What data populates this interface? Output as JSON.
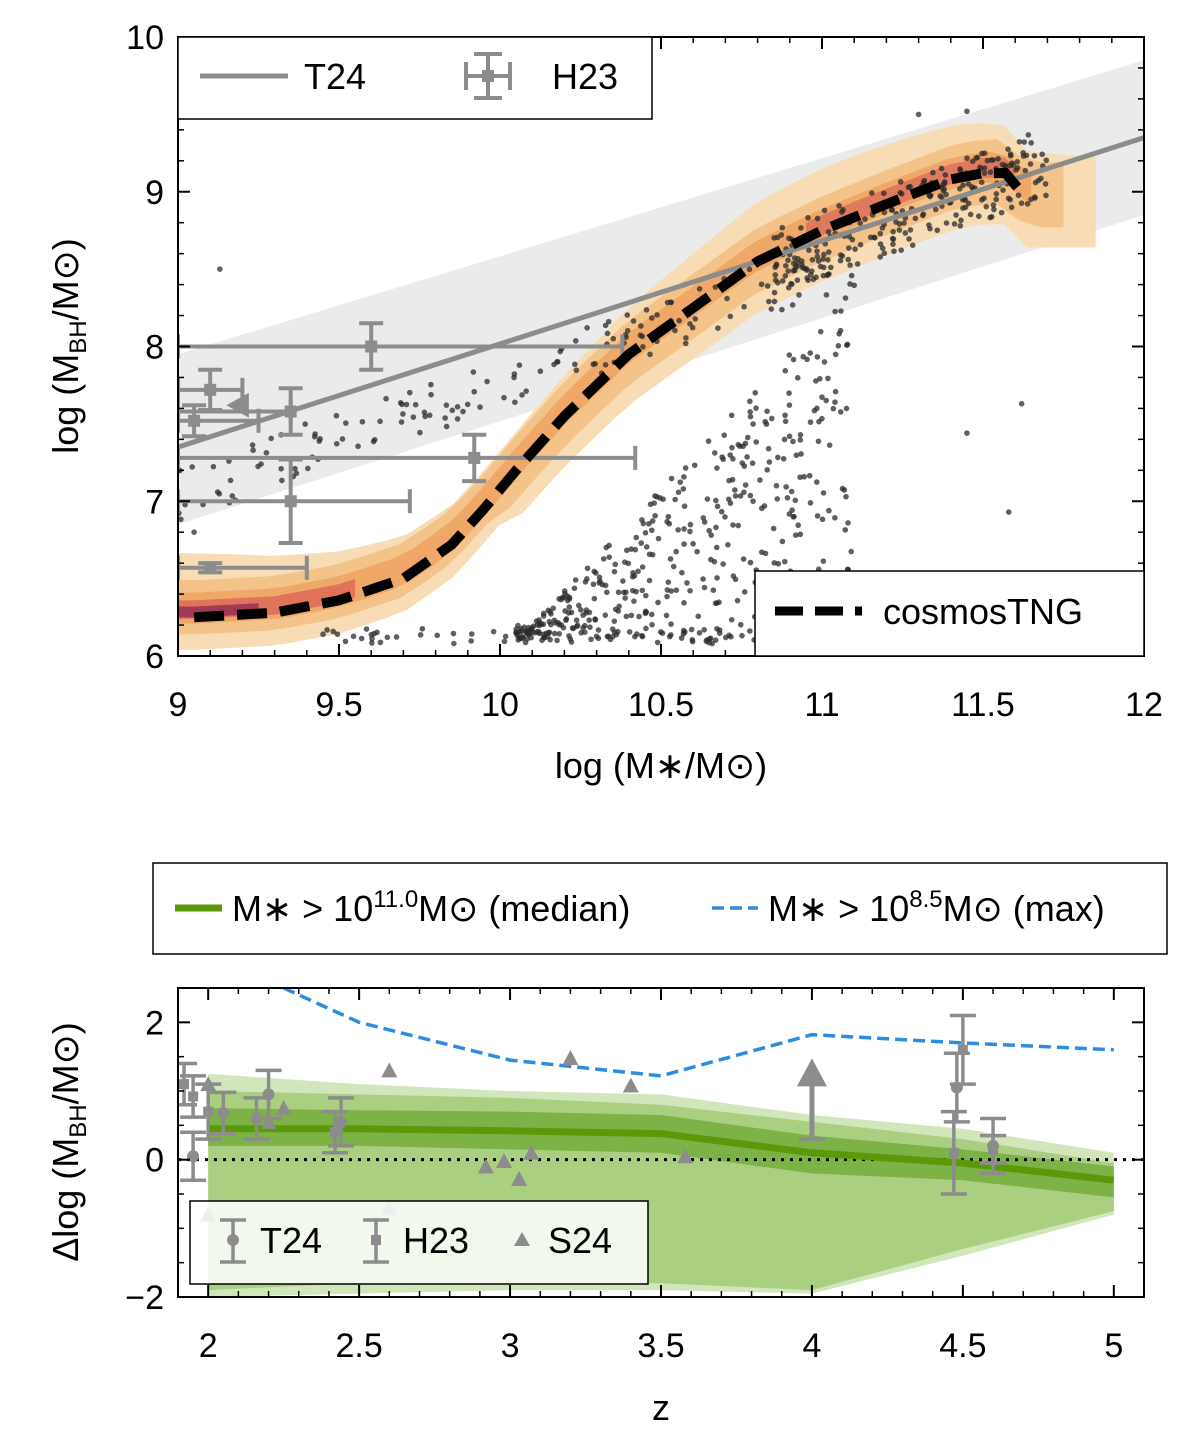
{
  "chart_data": [
    {
      "type": "scatter",
      "title": "",
      "xlabel": "log (M∗/M⊙)",
      "ylabel": "log (M_BH/M⊙)",
      "xlim": [
        9,
        12
      ],
      "ylim": [
        6,
        10
      ],
      "xticks": [
        "9",
        "9.5",
        "10",
        "10.5",
        "11",
        "11.5",
        "12"
      ],
      "yticks": [
        "6",
        "7",
        "8",
        "9",
        "10"
      ],
      "legend_top": [
        "T24",
        "H23"
      ],
      "legend_bottom": [
        "cosmosTNG"
      ],
      "series": [
        {
          "name": "T24",
          "kind": "relation",
          "x": [
            9,
            12
          ],
          "y": [
            7.35,
            9.35
          ],
          "band_y_lower": [
            6.85,
            8.85
          ],
          "band_y_upper": [
            7.95,
            9.85
          ]
        },
        {
          "name": "cosmosTNG",
          "kind": "median",
          "x": [
            9.05,
            9.3,
            9.5,
            9.7,
            9.85,
            9.95,
            10.05,
            10.2,
            10.4,
            10.6,
            10.8,
            11.0,
            11.2,
            11.4,
            11.5,
            11.57,
            11.63
          ],
          "y": [
            6.25,
            6.28,
            6.36,
            6.5,
            6.72,
            6.95,
            7.2,
            7.55,
            7.95,
            8.25,
            8.55,
            8.75,
            8.92,
            9.08,
            9.12,
            9.12,
            8.97
          ]
        },
        {
          "name": "H23",
          "kind": "errorbars",
          "points": [
            {
              "x": 9.6,
              "y": 8.0,
              "xerr": [
                0.6,
                0.78
              ],
              "yerr": [
                0.15,
                0.15
              ]
            },
            {
              "x": 9.92,
              "y": 7.28,
              "xerr": [
                0.92,
                0.5
              ],
              "yerr": [
                0.15,
                0.15
              ]
            },
            {
              "x": 9.35,
              "y": 7.0,
              "xerr": [
                0.35,
                0.37
              ],
              "yerr": [
                0.27,
                0.27
              ]
            },
            {
              "x": 9.35,
              "y": 7.58,
              "xerr": [
                0.35,
                0.0
              ],
              "yerr": [
                0.15,
                0.15
              ]
            },
            {
              "x": 9.1,
              "y": 7.72,
              "xerr": [
                0.1,
                0.1
              ],
              "yerr": [
                0.13,
                0.13
              ]
            },
            {
              "x": 9.05,
              "y": 7.52,
              "xerr": [
                0.05,
                0.2
              ],
              "yerr": [
                0.1,
                0.1
              ]
            },
            {
              "x": 9.1,
              "y": 6.57,
              "xerr": [
                0.1,
                0.3
              ],
              "yerr": [
                0.03,
                0.03
              ]
            }
          ]
        }
      ]
    },
    {
      "type": "line",
      "title": "",
      "xlabel": "z",
      "ylabel": "Δlog (M_BH/M⊙)",
      "xlim": [
        1.9,
        5.1
      ],
      "ylim": [
        -2,
        2.5
      ],
      "xticks": [
        "2",
        "2.5",
        "3",
        "3.5",
        "4",
        "4.5",
        "5"
      ],
      "yticks": [
        "−2",
        "0",
        "2"
      ],
      "legend_top": [
        "M∗ > 10^11.0 M⊙ (median)",
        "M∗ > 10^8.5 M⊙ (max)"
      ],
      "legend_bottom": [
        "T24",
        "H23",
        "S24"
      ],
      "x": [
        2,
        2.5,
        3,
        3.5,
        4,
        4.5,
        5
      ],
      "series": [
        {
          "name": "M∗ > 10^11.0 M⊙ (median)",
          "values": [
            0.45,
            0.45,
            0.42,
            0.38,
            0.1,
            -0.05,
            -0.3
          ]
        },
        {
          "name": "M∗ > 10^8.5 M⊙ (max)",
          "x": [
            2.25,
            2.5,
            3.0,
            3.5,
            4.0,
            4.5,
            5.0
          ],
          "values": [
            2.5,
            2.0,
            1.45,
            1.22,
            1.82,
            1.7,
            1.6
          ]
        },
        {
          "name": "inner band",
          "lower": [
            0.2,
            0.2,
            0.15,
            0.1,
            -0.2,
            -0.3,
            -0.55
          ],
          "upper": [
            0.75,
            0.72,
            0.7,
            0.65,
            0.35,
            0.15,
            -0.1
          ]
        },
        {
          "name": "middle band",
          "lower": [
            -1.9,
            -1.8,
            -1.8,
            -1.8,
            -1.9,
            -1.3,
            -0.75
          ],
          "upper": [
            1.0,
            0.95,
            0.9,
            0.8,
            0.55,
            0.3,
            -0.05
          ]
        },
        {
          "name": "outer band",
          "lower": [
            -2,
            -1.95,
            -1.9,
            -1.9,
            -1.95,
            -1.4,
            -0.8
          ],
          "upper": [
            1.25,
            1.1,
            1.0,
            0.95,
            0.65,
            0.45,
            0.1
          ]
        },
        {
          "name": "T24",
          "kind": "points",
          "points": [
            {
              "x": 1.95,
              "y": 0.05,
              "yerr": 0.35
            },
            {
              "x": 2.05,
              "y": 0.68,
              "yerr": 0.3
            },
            {
              "x": 2.2,
              "y": 0.95,
              "yerr": 0.35
            },
            {
              "x": 2.44,
              "y": 0.55,
              "yerr": 0.35
            },
            {
              "x": 4.48,
              "y": 1.05,
              "yerr": 0.5
            },
            {
              "x": 4.6,
              "y": 0.2,
              "yerr": 0.4
            }
          ]
        },
        {
          "name": "H23",
          "kind": "points",
          "points": [
            {
              "x": 1.92,
              "y": 1.1,
              "yerr": 0.3
            },
            {
              "x": 1.95,
              "y": 0.92,
              "yerr": 0.3
            },
            {
              "x": 2.0,
              "y": 0.7,
              "yerr": 0.4
            },
            {
              "x": 2.16,
              "y": 0.6,
              "yerr": 0.3
            },
            {
              "x": 2.42,
              "y": 0.4,
              "yerr": 0.3
            },
            {
              "x": 4.5,
              "y": 1.6,
              "yerr": 0.5
            },
            {
              "x": 4.47,
              "y": 0.1,
              "yerr": 0.6
            },
            {
              "x": 4.6,
              "y": 0.15,
              "yerr": 0.2
            }
          ]
        },
        {
          "name": "S24",
          "kind": "points",
          "points": [
            {
              "x": 2.0,
              "y": 1.1
            },
            {
              "x": 2.2,
              "y": 0.55
            },
            {
              "x": 2.25,
              "y": 0.75
            },
            {
              "x": 2.6,
              "y": 1.3
            },
            {
              "x": 2.92,
              "y": -0.1
            },
            {
              "x": 2.98,
              "y": -0.02
            },
            {
              "x": 3.03,
              "y": -0.28
            },
            {
              "x": 3.07,
              "y": 0.1
            },
            {
              "x": 3.2,
              "y": 1.48
            },
            {
              "x": 3.4,
              "y": 1.08
            },
            {
              "x": 3.58,
              "y": 0.05
            },
            {
              "x": 2.6,
              "y": -0.7
            },
            {
              "x": 2.0,
              "y": -0.8
            }
          ]
        },
        {
          "name": "lower limit",
          "kind": "arrow",
          "x": 4.0,
          "y_from": 0.3,
          "y_to": 1.3
        }
      ]
    }
  ]
}
